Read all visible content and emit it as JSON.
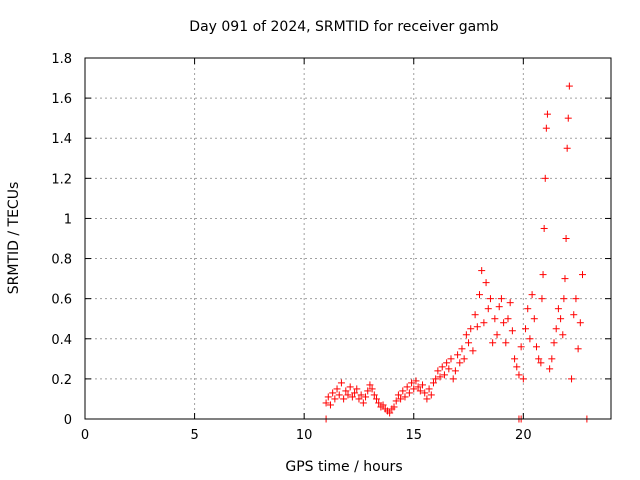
{
  "chart_data": {
    "type": "scatter",
    "title": "Day 091 of 2024, SRMTID for receiver gamb",
    "xlabel": "GPS time / hours",
    "ylabel": "SRMTID / TECUs",
    "xlim": [
      0,
      24
    ],
    "ylim": [
      0,
      1.8
    ],
    "xticks": [
      0,
      5,
      10,
      15,
      20
    ],
    "yticks": [
      0,
      0.2,
      0.4,
      0.6,
      0.8,
      1,
      1.2,
      1.4,
      1.6,
      1.8
    ],
    "ytick_labels": [
      "0",
      "0.2",
      "0.4",
      "0.6",
      "0.8",
      "1",
      "1.2",
      "1.4",
      "1.6",
      "1.8"
    ],
    "grid": true,
    "marker": "+",
    "color": "#ff0000",
    "series": [
      {
        "name": "SRMTID",
        "x": [
          11.0,
          11.1,
          11.2,
          11.3,
          11.4,
          11.5,
          11.6,
          11.7,
          11.8,
          11.9,
          12.0,
          12.1,
          12.2,
          12.3,
          12.4,
          12.5,
          12.6,
          12.7,
          12.8,
          12.9,
          13.0,
          13.1,
          13.2,
          13.3,
          13.4,
          13.5,
          13.6,
          13.7,
          13.8,
          13.9,
          14.0,
          14.1,
          14.2,
          14.3,
          14.4,
          14.5,
          14.6,
          14.7,
          14.8,
          14.9,
          15.0,
          15.1,
          15.2,
          15.3,
          15.4,
          15.5,
          15.6,
          15.7,
          15.8,
          15.9,
          16.0,
          16.1,
          16.2,
          16.3,
          16.4,
          16.5,
          16.6,
          16.7,
          16.8,
          16.9,
          17.0,
          17.1,
          17.2,
          17.3,
          17.4,
          17.5,
          17.6,
          17.7,
          17.8,
          17.9,
          18.0,
          18.1,
          18.2,
          18.3,
          18.4,
          18.5,
          18.6,
          18.7,
          18.8,
          18.9,
          19.0,
          19.1,
          19.2,
          19.3,
          19.4,
          19.5,
          19.6,
          19.7,
          19.8,
          19.9,
          20.0,
          20.1,
          20.2,
          20.3,
          20.4,
          20.5,
          20.6,
          20.7,
          20.8,
          20.85,
          20.9,
          20.95,
          21.0,
          21.05,
          21.1,
          21.2,
          21.3,
          21.4,
          21.5,
          21.6,
          21.7,
          21.8,
          21.85,
          21.9,
          21.95,
          22.0,
          22.05,
          22.1,
          22.2,
          22.3,
          22.4,
          22.5,
          22.6,
          22.7,
          11.0,
          19.8,
          19.9,
          22.9
        ],
        "y": [
          0.08,
          0.11,
          0.07,
          0.13,
          0.1,
          0.15,
          0.12,
          0.18,
          0.1,
          0.14,
          0.12,
          0.16,
          0.11,
          0.13,
          0.15,
          0.1,
          0.12,
          0.08,
          0.11,
          0.14,
          0.17,
          0.15,
          0.12,
          0.1,
          0.08,
          0.06,
          0.07,
          0.05,
          0.04,
          0.03,
          0.05,
          0.06,
          0.09,
          0.12,
          0.1,
          0.14,
          0.11,
          0.16,
          0.13,
          0.18,
          0.15,
          0.19,
          0.16,
          0.14,
          0.17,
          0.13,
          0.1,
          0.15,
          0.12,
          0.18,
          0.2,
          0.24,
          0.21,
          0.26,
          0.22,
          0.28,
          0.25,
          0.3,
          0.2,
          0.24,
          0.32,
          0.28,
          0.35,
          0.3,
          0.42,
          0.38,
          0.45,
          0.34,
          0.52,
          0.46,
          0.62,
          0.74,
          0.48,
          0.68,
          0.55,
          0.6,
          0.38,
          0.5,
          0.42,
          0.56,
          0.6,
          0.48,
          0.38,
          0.5,
          0.58,
          0.44,
          0.3,
          0.26,
          0.22,
          0.36,
          0.2,
          0.45,
          0.55,
          0.4,
          0.62,
          0.5,
          0.36,
          0.3,
          0.28,
          0.6,
          0.72,
          0.95,
          1.2,
          1.45,
          1.52,
          0.25,
          0.3,
          0.38,
          0.45,
          0.55,
          0.5,
          0.42,
          0.6,
          0.7,
          0.9,
          1.35,
          1.5,
          1.66,
          0.2,
          0.52,
          0.6,
          0.35,
          0.48,
          0.72,
          0.0,
          0.0,
          0.0,
          0.0
        ]
      }
    ]
  }
}
